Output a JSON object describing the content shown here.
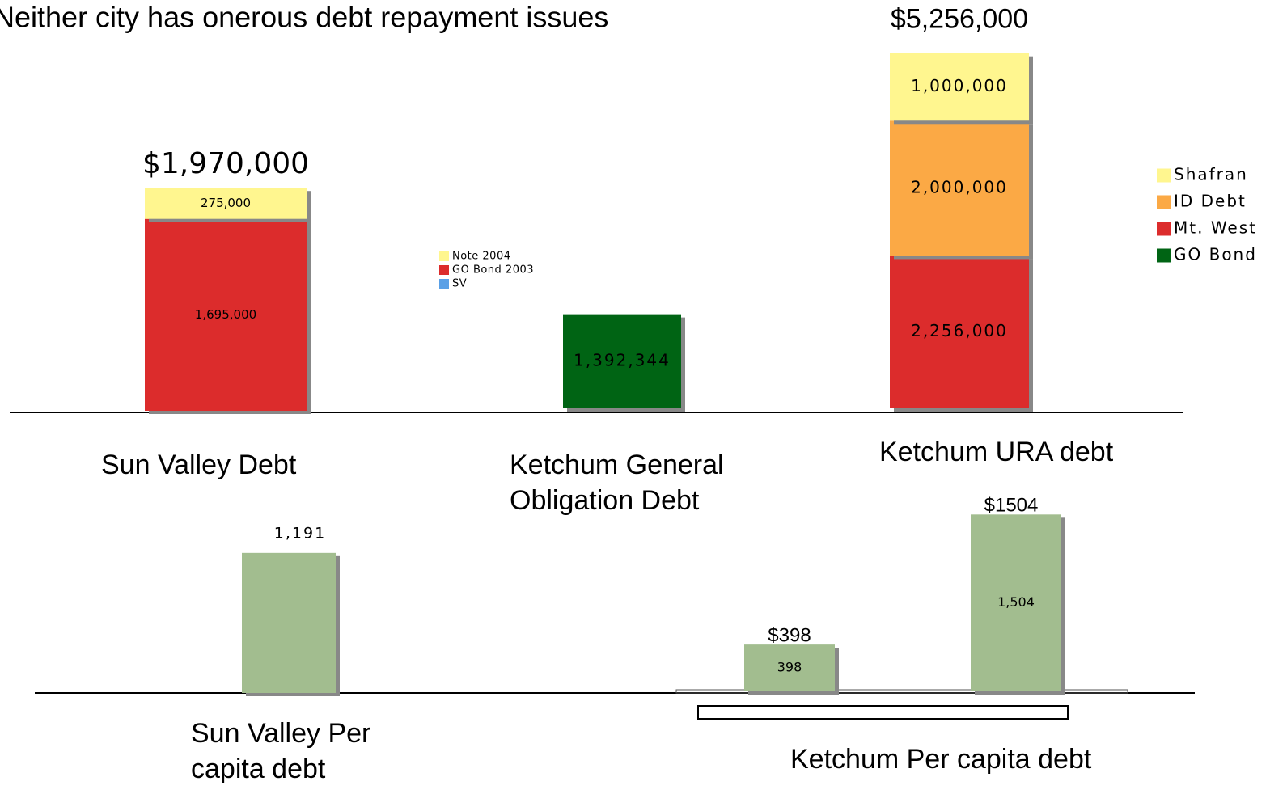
{
  "title": "Neither city has onerous debt repayment issues",
  "chart_data": [
    {
      "type": "bar",
      "stacked": true,
      "categories": [
        "Sun Valley Debt"
      ],
      "total_labels": [
        "$1,970,000"
      ],
      "ylim": [
        0,
        3200000
      ],
      "series": [
        {
          "name": "Note 2004",
          "color": "#fff68f",
          "values": [
            275000
          ],
          "value_labels": [
            "275,000"
          ]
        },
        {
          "name": "GO Bond 2003",
          "color": "#dc2c2c",
          "values": [
            1695000
          ],
          "value_labels": [
            "1,695,000"
          ]
        },
        {
          "name": "SV",
          "color": "#5aa0e6",
          "values": [
            null
          ],
          "value_labels": [
            null
          ]
        }
      ]
    },
    {
      "type": "bar",
      "stacked": true,
      "categories": [
        "Ketchum General Obligation Debt",
        "Ketchum URA debt"
      ],
      "total_labels": [
        null,
        "$5,256,000"
      ],
      "ylim": [
        0,
        5300000
      ],
      "series": [
        {
          "name": "Shafran",
          "color": "#fff68f",
          "values": [
            null,
            1000000
          ],
          "value_labels": [
            null,
            "1,000,000"
          ]
        },
        {
          "name": "ID Debt",
          "color": "#fba945",
          "values": [
            null,
            2000000
          ],
          "value_labels": [
            null,
            "2,000,000"
          ]
        },
        {
          "name": "Mt. West",
          "color": "#dc2c2c",
          "values": [
            null,
            2256000
          ],
          "value_labels": [
            null,
            "2,256,000"
          ]
        },
        {
          "name": "GO Bond",
          "color": "#006414",
          "values": [
            1392344,
            null
          ],
          "value_labels": [
            "1,392,344",
            null
          ]
        }
      ]
    },
    {
      "type": "bar",
      "categories": [
        "Sun Valley Per capita debt"
      ],
      "values": [
        1191
      ],
      "value_labels": [
        "1,191"
      ],
      "color": "#a2bd8f",
      "ylim": [
        0,
        1630
      ]
    },
    {
      "type": "bar",
      "title": "Ketchum Per capita debt",
      "categories": [
        null,
        null
      ],
      "values": [
        398,
        1504
      ],
      "value_labels": [
        "398",
        "1,504"
      ],
      "total_labels": [
        "$398",
        "$1504"
      ],
      "color": "#a2bd8f",
      "ylim": [
        0,
        1630
      ]
    }
  ]
}
